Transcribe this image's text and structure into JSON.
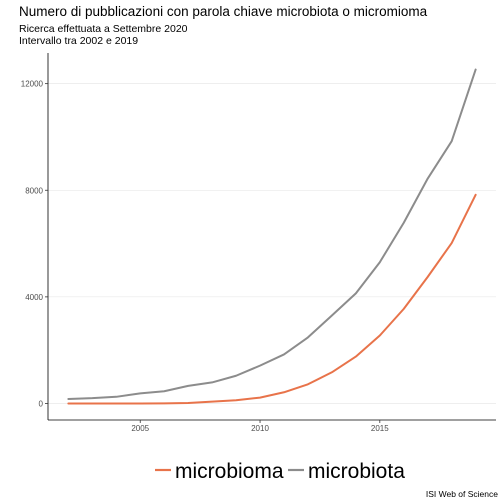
{
  "chart_data": {
    "type": "line",
    "title": "Numero di pubblicazioni con parola chiave microbiota o micromioma",
    "subtitle_lines": [
      "Ricerca effettuata a Settembre 2020",
      "Intervallo tra 2002 e 2019"
    ],
    "caption": "ISI Web of Science",
    "xlabel": "",
    "ylabel": "",
    "x": [
      2002,
      2003,
      2004,
      2005,
      2006,
      2007,
      2008,
      2009,
      2010,
      2011,
      2012,
      2013,
      2014,
      2015,
      2016,
      2017,
      2018,
      2019
    ],
    "xlim": [
      2001.15,
      2019.85
    ],
    "ylim": [
      -620,
      13150
    ],
    "x_ticks": [
      2005,
      2010,
      2015
    ],
    "x_tick_labels": [
      "2005",
      "2010",
      "2015"
    ],
    "y_ticks": [
      0,
      4000,
      8000,
      12000
    ],
    "y_tick_labels": [
      "0",
      "4000",
      "8000",
      "12000"
    ],
    "grid": "horizontal",
    "legend_position": "bottom",
    "series": [
      {
        "name": "microbioma",
        "color": "#E8734A",
        "values": [
          0,
          0,
          0,
          0,
          5,
          20,
          70,
          120,
          220,
          420,
          720,
          1170,
          1760,
          2550,
          3550,
          4750,
          6020,
          7830
        ]
      },
      {
        "name": "microbiota",
        "color": "#8C8C8C",
        "values": [
          170,
          200,
          250,
          380,
          460,
          660,
          790,
          1040,
          1420,
          1840,
          2480,
          3300,
          4130,
          5300,
          6780,
          8440,
          9840,
          12530
        ]
      }
    ]
  }
}
